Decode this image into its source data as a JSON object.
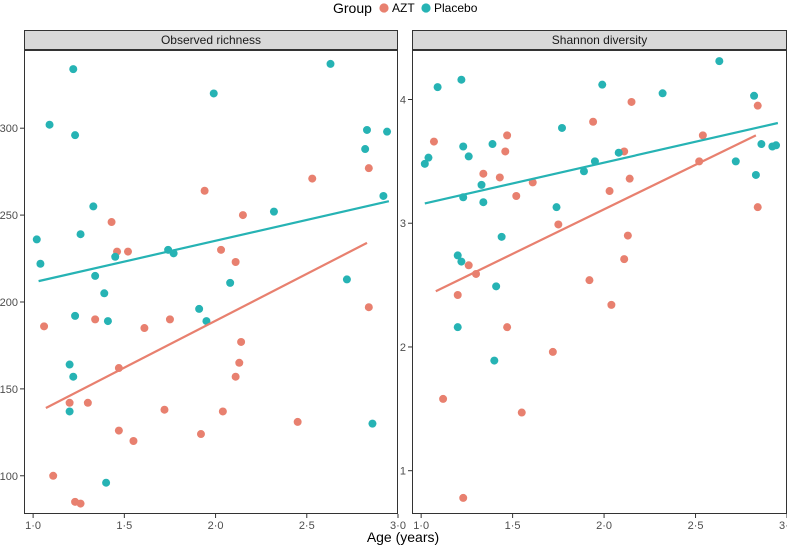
{
  "chart_data": {
    "type": "scatter",
    "xlabel": "Age (years)",
    "legend": {
      "title": "Group",
      "position": "top",
      "entries": [
        {
          "name": "AZT",
          "color": "#E8806F"
        },
        {
          "name": "Placebo",
          "color": "#26B3B4"
        }
      ]
    },
    "x_ticks": [
      1.0,
      1.5,
      2.0,
      2.5,
      3.0
    ],
    "x_tick_labels": [
      "1·0",
      "1·5",
      "2·0",
      "2·5",
      "3·0"
    ],
    "xlim": [
      0.95,
      3.0
    ],
    "panels": [
      {
        "title": "Observed richness",
        "ylim": [
          78,
          345
        ],
        "y_ticks": [
          100,
          150,
          200,
          250,
          300
        ],
        "y_tick_labels": [
          "100",
          "150",
          "200",
          "250",
          "300"
        ],
        "series": [
          {
            "name": "AZT",
            "points": [
              [
                1.06,
                186
              ],
              [
                1.11,
                100
              ],
              [
                1.2,
                142
              ],
              [
                1.23,
                85
              ],
              [
                1.26,
                84
              ],
              [
                1.3,
                142
              ],
              [
                1.34,
                190
              ],
              [
                1.43,
                246
              ],
              [
                1.46,
                229
              ],
              [
                1.47,
                162
              ],
              [
                1.47,
                126
              ],
              [
                1.52,
                229
              ],
              [
                1.55,
                120
              ],
              [
                1.61,
                185
              ],
              [
                1.72,
                138
              ],
              [
                1.75,
                190
              ],
              [
                1.92,
                124
              ],
              [
                1.94,
                264
              ],
              [
                2.03,
                230
              ],
              [
                2.04,
                137
              ],
              [
                2.11,
                157
              ],
              [
                2.11,
                223
              ],
              [
                2.13,
                165
              ],
              [
                2.14,
                177
              ],
              [
                2.15,
                250
              ],
              [
                2.45,
                131
              ],
              [
                2.53,
                271
              ],
              [
                2.84,
                277
              ],
              [
                2.84,
                197
              ]
            ],
            "trend": [
              [
                1.07,
                139
              ],
              [
                2.83,
                234
              ]
            ]
          },
          {
            "name": "Placebo",
            "points": [
              [
                1.02,
                236
              ],
              [
                1.04,
                222
              ],
              [
                1.09,
                302
              ],
              [
                1.2,
                164
              ],
              [
                1.2,
                137
              ],
              [
                1.22,
                334
              ],
              [
                1.22,
                157
              ],
              [
                1.23,
                296
              ],
              [
                1.23,
                192
              ],
              [
                1.26,
                239
              ],
              [
                1.33,
                255
              ],
              [
                1.34,
                215
              ],
              [
                1.39,
                205
              ],
              [
                1.4,
                96
              ],
              [
                1.41,
                189
              ],
              [
                1.45,
                226
              ],
              [
                1.74,
                230
              ],
              [
                1.77,
                228
              ],
              [
                1.91,
                196
              ],
              [
                1.95,
                189
              ],
              [
                1.99,
                320
              ],
              [
                2.08,
                211
              ],
              [
                2.32,
                252
              ],
              [
                2.63,
                337
              ],
              [
                2.72,
                213
              ],
              [
                2.82,
                288
              ],
              [
                2.83,
                299
              ],
              [
                2.86,
                130
              ],
              [
                2.92,
                261
              ],
              [
                2.94,
                298
              ]
            ],
            "trend": [
              [
                1.03,
                212
              ],
              [
                2.95,
                258
              ]
            ]
          }
        ]
      },
      {
        "title": "Shannon diversity",
        "ylim": [
          0.65,
          4.4
        ],
        "y_ticks": [
          1,
          2,
          3,
          4
        ],
        "y_tick_labels": [
          "1",
          "2",
          "3",
          "4"
        ],
        "series": [
          {
            "name": "AZT",
            "points": [
              [
                1.07,
                3.66
              ],
              [
                1.12,
                1.58
              ],
              [
                1.2,
                2.42
              ],
              [
                1.23,
                0.78
              ],
              [
                1.26,
                2.66
              ],
              [
                1.3,
                2.59
              ],
              [
                1.34,
                3.4
              ],
              [
                1.43,
                3.37
              ],
              [
                1.46,
                3.58
              ],
              [
                1.47,
                3.71
              ],
              [
                1.47,
                2.16
              ],
              [
                1.52,
                3.22
              ],
              [
                1.55,
                1.47
              ],
              [
                1.61,
                3.33
              ],
              [
                1.72,
                1.96
              ],
              [
                1.75,
                2.99
              ],
              [
                1.92,
                2.54
              ],
              [
                1.94,
                3.82
              ],
              [
                2.03,
                3.26
              ],
              [
                2.04,
                2.34
              ],
              [
                2.11,
                2.71
              ],
              [
                2.11,
                3.58
              ],
              [
                2.13,
                2.9
              ],
              [
                2.14,
                3.36
              ],
              [
                2.15,
                3.98
              ],
              [
                2.52,
                3.5
              ],
              [
                2.54,
                3.71
              ],
              [
                2.84,
                3.95
              ],
              [
                2.84,
                3.13
              ]
            ],
            "trend": [
              [
                1.08,
                2.45
              ],
              [
                2.83,
                3.71
              ]
            ]
          },
          {
            "name": "Placebo",
            "points": [
              [
                1.02,
                3.48
              ],
              [
                1.04,
                3.53
              ],
              [
                1.09,
                4.1
              ],
              [
                1.2,
                2.74
              ],
              [
                1.2,
                2.16
              ],
              [
                1.22,
                4.16
              ],
              [
                1.22,
                2.69
              ],
              [
                1.23,
                3.62
              ],
              [
                1.23,
                3.21
              ],
              [
                1.26,
                3.54
              ],
              [
                1.33,
                3.31
              ],
              [
                1.34,
                3.17
              ],
              [
                1.39,
                3.64
              ],
              [
                1.4,
                1.89
              ],
              [
                1.41,
                2.49
              ],
              [
                1.44,
                2.89
              ],
              [
                1.74,
                3.13
              ],
              [
                1.77,
                3.77
              ],
              [
                1.89,
                3.42
              ],
              [
                1.95,
                3.5
              ],
              [
                1.99,
                4.12
              ],
              [
                2.08,
                3.57
              ],
              [
                2.32,
                4.05
              ],
              [
                2.63,
                4.31
              ],
              [
                2.72,
                3.5
              ],
              [
                2.82,
                4.03
              ],
              [
                2.83,
                3.39
              ],
              [
                2.86,
                3.64
              ],
              [
                2.92,
                3.62
              ],
              [
                2.94,
                3.63
              ]
            ],
            "trend": [
              [
                1.02,
                3.16
              ],
              [
                2.95,
                3.81
              ]
            ]
          }
        ]
      }
    ]
  }
}
